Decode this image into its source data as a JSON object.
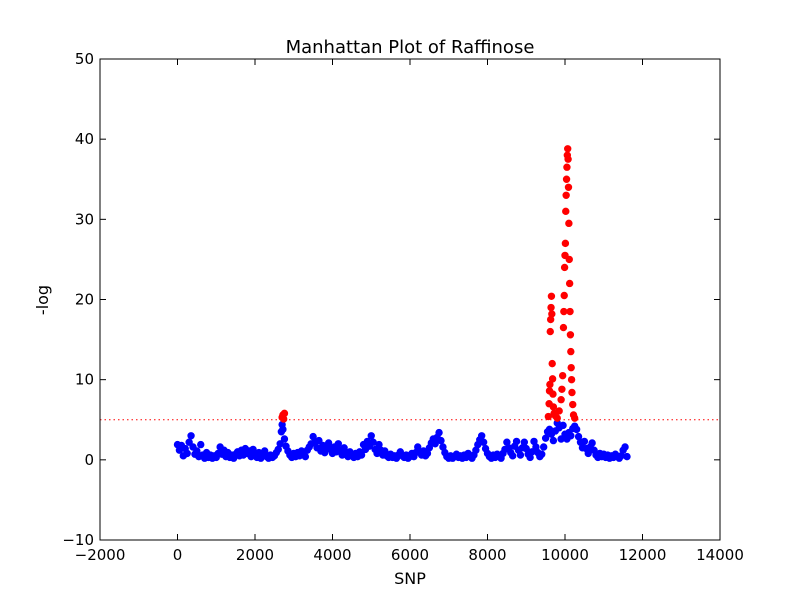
{
  "chart_data": {
    "type": "scatter",
    "title": "Manhattan Plot of Raffinose",
    "xlabel": "SNP",
    "ylabel": "-log",
    "xlim": [
      -2000,
      14000
    ],
    "ylim": [
      -10,
      50
    ],
    "xticks": [
      -2000,
      0,
      2000,
      4000,
      6000,
      8000,
      10000,
      12000,
      14000
    ],
    "xtick_labels": [
      "−2000",
      "0",
      "2000",
      "4000",
      "6000",
      "8000",
      "10000",
      "12000",
      "14000"
    ],
    "yticks": [
      -10,
      0,
      10,
      20,
      30,
      40,
      50
    ],
    "ytick_labels": [
      "−10",
      "0",
      "10",
      "20",
      "30",
      "40",
      "50"
    ],
    "grid": false,
    "threshold": {
      "y": 5,
      "color": "#ff0000",
      "style": "dotted"
    },
    "colors": {
      "below_threshold": "#0000ff",
      "above_threshold": "#ff0000",
      "frame": "#000000"
    },
    "series": [
      {
        "color": "#0000ff",
        "points": [
          [
            0,
            1.9
          ],
          [
            50,
            1.2
          ],
          [
            100,
            1.8
          ],
          [
            150,
            0.5
          ],
          [
            200,
            1.4
          ],
          [
            250,
            0.8
          ],
          [
            300,
            2.2
          ],
          [
            350,
            3.0
          ],
          [
            400,
            1.6
          ],
          [
            450,
            0.7
          ],
          [
            500,
            1.1
          ],
          [
            550,
            0.4
          ],
          [
            600,
            1.9
          ],
          [
            650,
            0.6
          ],
          [
            700,
            0.2
          ],
          [
            750,
            0.9
          ],
          [
            800,
            0.3
          ],
          [
            850,
            0.6
          ],
          [
            900,
            0.2
          ],
          [
            950,
            0.5
          ],
          [
            1000,
            0.3
          ],
          [
            1050,
            0.8
          ],
          [
            1100,
            1.6
          ],
          [
            1150,
            0.7
          ],
          [
            1200,
            1.2
          ],
          [
            1250,
            0.4
          ],
          [
            1300,
            0.9
          ],
          [
            1350,
            0.3
          ],
          [
            1400,
            0.6
          ],
          [
            1450,
            0.2
          ],
          [
            1500,
            0.7
          ],
          [
            1550,
            1.0
          ],
          [
            1600,
            0.5
          ],
          [
            1650,
            1.2
          ],
          [
            1700,
            0.6
          ],
          [
            1750,
            1.4
          ],
          [
            1800,
            0.8
          ],
          [
            1850,
            1.1
          ],
          [
            1900,
            0.4
          ],
          [
            1950,
            1.3
          ],
          [
            2000,
            0.7
          ],
          [
            2050,
            0.3
          ],
          [
            2100,
            0.9
          ],
          [
            2150,
            0.2
          ],
          [
            2200,
            0.5
          ],
          [
            2250,
            1.1
          ],
          [
            2300,
            0.4
          ],
          [
            2350,
            0.2
          ],
          [
            2400,
            0.6
          ],
          [
            2450,
            0.3
          ],
          [
            2500,
            0.5
          ],
          [
            2550,
            0.9
          ],
          [
            2600,
            1.3
          ],
          [
            2650,
            2.0
          ],
          [
            2680,
            3.5
          ],
          [
            2700,
            4.4
          ],
          [
            2720,
            3.8
          ],
          [
            2760,
            2.6
          ],
          [
            2800,
            1.7
          ],
          [
            2850,
            1.1
          ],
          [
            2900,
            0.6
          ],
          [
            2950,
            0.3
          ],
          [
            3000,
            0.8
          ],
          [
            3050,
            0.4
          ],
          [
            3100,
            0.9
          ],
          [
            3150,
            0.5
          ],
          [
            3200,
            1.1
          ],
          [
            3250,
            0.7
          ],
          [
            3300,
            0.4
          ],
          [
            3350,
            1.2
          ],
          [
            3400,
            1.6
          ],
          [
            3450,
            2.0
          ],
          [
            3500,
            2.9
          ],
          [
            3550,
            2.2
          ],
          [
            3600,
            1.5
          ],
          [
            3650,
            2.4
          ],
          [
            3700,
            1.1
          ],
          [
            3750,
            1.8
          ],
          [
            3800,
            0.9
          ],
          [
            3850,
            1.4
          ],
          [
            3900,
            2.1
          ],
          [
            3950,
            1.3
          ],
          [
            4000,
            0.8
          ],
          [
            4050,
            1.6
          ],
          [
            4100,
            1.0
          ],
          [
            4150,
            2.0
          ],
          [
            4200,
            1.2
          ],
          [
            4250,
            0.6
          ],
          [
            4300,
            1.5
          ],
          [
            4350,
            0.9
          ],
          [
            4400,
            0.4
          ],
          [
            4450,
            1.0
          ],
          [
            4500,
            0.6
          ],
          [
            4550,
            0.3
          ],
          [
            4600,
            0.8
          ],
          [
            4650,
            0.4
          ],
          [
            4700,
            1.0
          ],
          [
            4750,
            0.6
          ],
          [
            4800,
            1.9
          ],
          [
            4850,
            1.3
          ],
          [
            4900,
            2.3
          ],
          [
            4950,
            1.7
          ],
          [
            5000,
            3.0
          ],
          [
            5050,
            2.2
          ],
          [
            5100,
            1.3
          ],
          [
            5150,
            0.8
          ],
          [
            5200,
            1.9
          ],
          [
            5250,
            1.2
          ],
          [
            5300,
            0.6
          ],
          [
            5350,
            1.1
          ],
          [
            5400,
            0.5
          ],
          [
            5450,
            0.3
          ],
          [
            5500,
            0.7
          ],
          [
            5550,
            0.3
          ],
          [
            5600,
            0.5
          ],
          [
            5650,
            0.2
          ],
          [
            5700,
            0.6
          ],
          [
            5750,
            1.0
          ],
          [
            5800,
            0.5
          ],
          [
            5850,
            0.3
          ],
          [
            5900,
            0.6
          ],
          [
            5950,
            0.2
          ],
          [
            6000,
            0.4
          ],
          [
            6050,
            0.8
          ],
          [
            6100,
            0.4
          ],
          [
            6150,
            0.9
          ],
          [
            6200,
            1.6
          ],
          [
            6250,
            1.0
          ],
          [
            6300,
            0.6
          ],
          [
            6350,
            1.1
          ],
          [
            6400,
            0.5
          ],
          [
            6450,
            0.8
          ],
          [
            6500,
            1.5
          ],
          [
            6550,
            2.1
          ],
          [
            6600,
            2.6
          ],
          [
            6650,
            2.0
          ],
          [
            6700,
            2.8
          ],
          [
            6750,
            3.4
          ],
          [
            6800,
            2.4
          ],
          [
            6850,
            1.6
          ],
          [
            6900,
            0.9
          ],
          [
            6950,
            0.4
          ],
          [
            7000,
            0.2
          ],
          [
            7050,
            0.5
          ],
          [
            7100,
            0.2
          ],
          [
            7150,
            0.4
          ],
          [
            7200,
            0.7
          ],
          [
            7250,
            0.3
          ],
          [
            7300,
            0.5
          ],
          [
            7350,
            0.2
          ],
          [
            7400,
            0.6
          ],
          [
            7450,
            0.3
          ],
          [
            7500,
            0.8
          ],
          [
            7550,
            0.4
          ],
          [
            7600,
            0.2
          ],
          [
            7650,
            0.6
          ],
          [
            7700,
            1.2
          ],
          [
            7750,
            1.9
          ],
          [
            7800,
            2.5
          ],
          [
            7850,
            3.0
          ],
          [
            7900,
            2.2
          ],
          [
            7950,
            1.4
          ],
          [
            8000,
            0.8
          ],
          [
            8050,
            0.4
          ],
          [
            8100,
            0.2
          ],
          [
            8150,
            0.6
          ],
          [
            8200,
            0.3
          ],
          [
            8250,
            0.7
          ],
          [
            8300,
            0.4
          ],
          [
            8350,
            0.2
          ],
          [
            8400,
            0.8
          ],
          [
            8450,
            1.3
          ],
          [
            8500,
            2.2
          ],
          [
            8550,
            1.5
          ],
          [
            8600,
            0.9
          ],
          [
            8650,
            0.5
          ],
          [
            8700,
            1.7
          ],
          [
            8750,
            2.3
          ],
          [
            8800,
            1.2
          ],
          [
            8850,
            0.6
          ],
          [
            8900,
            1.5
          ],
          [
            8950,
            2.2
          ],
          [
            9000,
            1.4
          ],
          [
            9050,
            0.7
          ],
          [
            9100,
            0.3
          ],
          [
            9150,
            1.0
          ],
          [
            9200,
            2.3
          ],
          [
            9250,
            1.6
          ],
          [
            9300,
            0.9
          ],
          [
            9350,
            0.4
          ],
          [
            9400,
            0.7
          ],
          [
            9450,
            1.6
          ],
          [
            9500,
            2.7
          ],
          [
            9550,
            3.5
          ],
          [
            9600,
            3.8
          ],
          [
            9650,
            3.2
          ],
          [
            9700,
            2.4
          ],
          [
            9750,
            3.6
          ],
          [
            9800,
            4.6
          ],
          [
            9850,
            4.0
          ],
          [
            9900,
            2.6
          ],
          [
            9950,
            4.3
          ],
          [
            10000,
            3.2
          ],
          [
            10050,
            2.6
          ],
          [
            10100,
            3.4
          ],
          [
            10150,
            3.0
          ],
          [
            10200,
            3.9
          ],
          [
            10250,
            4.2
          ],
          [
            10300,
            3.8
          ],
          [
            10350,
            2.9
          ],
          [
            10400,
            2.2
          ],
          [
            10450,
            1.5
          ],
          [
            10500,
            2.3
          ],
          [
            10550,
            1.4
          ],
          [
            10600,
            0.8
          ],
          [
            10650,
            1.6
          ],
          [
            10700,
            2.1
          ],
          [
            10750,
            1.2
          ],
          [
            10800,
            0.6
          ],
          [
            10850,
            0.3
          ],
          [
            10900,
            0.8
          ],
          [
            10950,
            0.4
          ],
          [
            11000,
            0.7
          ],
          [
            11050,
            0.3
          ],
          [
            11100,
            0.6
          ],
          [
            11150,
            0.2
          ],
          [
            11200,
            0.5
          ],
          [
            11250,
            0.3
          ],
          [
            11300,
            0.7
          ],
          [
            11350,
            0.4
          ],
          [
            11400,
            0.2
          ],
          [
            11450,
            0.5
          ],
          [
            11500,
            1.2
          ],
          [
            11550,
            1.6
          ],
          [
            11600,
            0.4
          ]
        ]
      },
      {
        "color": "#ff0000",
        "points": [
          [
            2700,
            5.3
          ],
          [
            2720,
            5.6
          ],
          [
            2740,
            5.1
          ],
          [
            2760,
            5.8
          ],
          [
            9570,
            5.4
          ],
          [
            9590,
            7.0
          ],
          [
            9600,
            8.6
          ],
          [
            9610,
            9.4
          ],
          [
            9620,
            16.0
          ],
          [
            9630,
            17.5
          ],
          [
            9640,
            19.0
          ],
          [
            9650,
            20.4
          ],
          [
            9660,
            18.2
          ],
          [
            9670,
            12.0
          ],
          [
            9680,
            10.1
          ],
          [
            9690,
            8.2
          ],
          [
            9700,
            6.6
          ],
          [
            9720,
            5.8
          ],
          [
            9750,
            5.5
          ],
          [
            9800,
            5.2
          ],
          [
            9850,
            6.1
          ],
          [
            9900,
            7.5
          ],
          [
            9920,
            8.8
          ],
          [
            9940,
            10.5
          ],
          [
            9960,
            16.5
          ],
          [
            9970,
            18.5
          ],
          [
            9980,
            20.5
          ],
          [
            9990,
            24.0
          ],
          [
            10000,
            25.5
          ],
          [
            10010,
            27.0
          ],
          [
            10020,
            31.0
          ],
          [
            10030,
            33.0
          ],
          [
            10040,
            35.0
          ],
          [
            10050,
            36.5
          ],
          [
            10060,
            38.0
          ],
          [
            10070,
            38.8
          ],
          [
            10080,
            37.5
          ],
          [
            10090,
            34.0
          ],
          [
            10100,
            29.5
          ],
          [
            10110,
            25.0
          ],
          [
            10120,
            22.0
          ],
          [
            10130,
            18.5
          ],
          [
            10140,
            15.6
          ],
          [
            10150,
            13.5
          ],
          [
            10160,
            11.5
          ],
          [
            10170,
            10.0
          ],
          [
            10180,
            8.4
          ],
          [
            10200,
            6.9
          ],
          [
            10220,
            5.6
          ],
          [
            10250,
            5.2
          ]
        ]
      }
    ]
  }
}
